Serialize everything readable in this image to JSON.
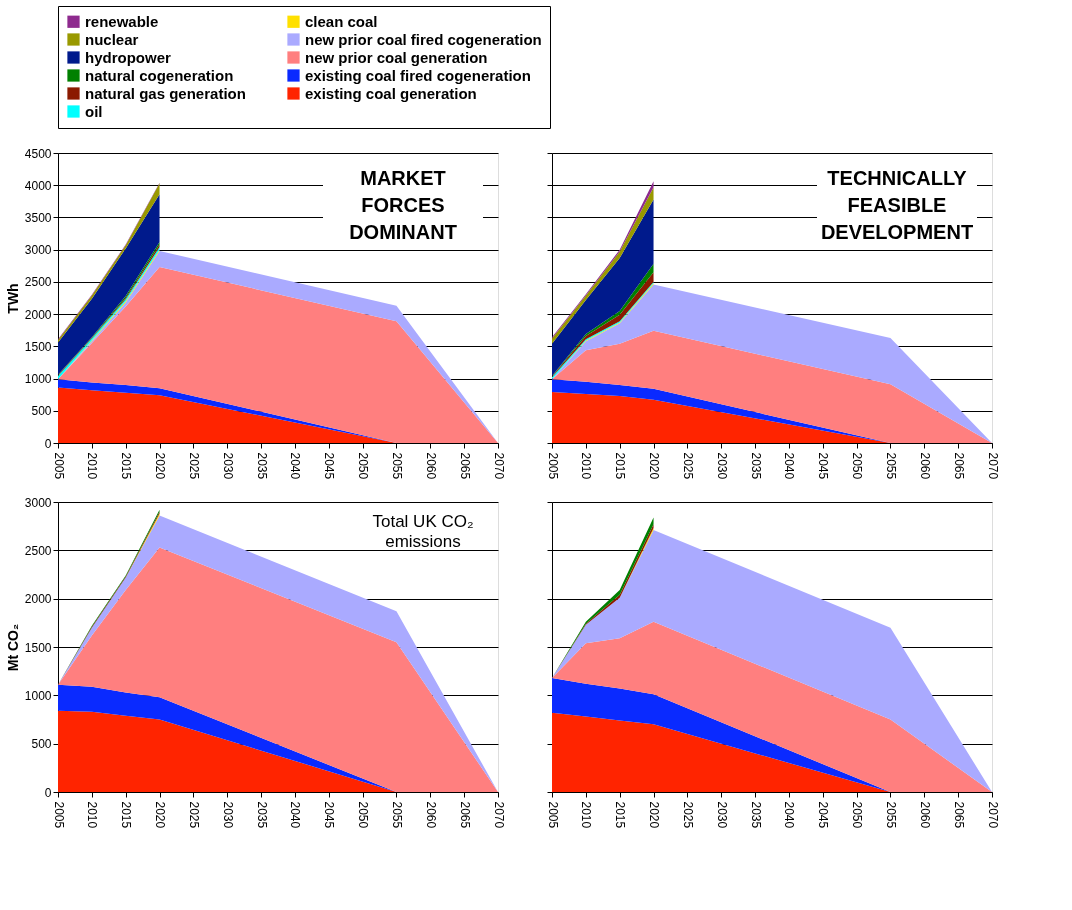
{
  "chart_data": [
    {
      "type": "area",
      "stacked": true,
      "title": "MARKET FORCES DOMINANT",
      "ylabel": "TWh",
      "legend": "top",
      "grid": "y",
      "x": [
        2005,
        2010,
        2015,
        2020,
        2055,
        2070
      ],
      "xlim": [
        2005,
        2070
      ],
      "xticks": [
        2005,
        2010,
        2015,
        2020,
        2025,
        2030,
        2035,
        2040,
        2045,
        2050,
        2055,
        2060,
        2065,
        2070
      ],
      "ylim": [
        0,
        4500
      ],
      "yticks": [
        0,
        500,
        1000,
        1500,
        2000,
        2500,
        3000,
        3500,
        4000,
        4500
      ],
      "series": [
        {
          "name": "existing coal generation",
          "color": "#ff2400",
          "values": [
            860,
            820,
            780,
            740,
            0,
            0
          ]
        },
        {
          "name": "existing coal fired cogeneration",
          "color": "#0a2aff",
          "values": [
            130,
            120,
            120,
            110,
            0,
            0
          ]
        },
        {
          "name": "new prior coal generation",
          "color": "#ff7f7f",
          "values": [
            0,
            610,
            1220,
            1880,
            1890,
            0
          ]
        },
        {
          "name": "new prior coal fired cogeneration",
          "color": "#aaaaff",
          "values": [
            0,
            30,
            60,
            250,
            240,
            0
          ]
        },
        {
          "name": "clean coal",
          "color": "#ffe000",
          "values": [
            0,
            10,
            20,
            20,
            null,
            null
          ]
        },
        {
          "name": "oil",
          "color": "#00ffff",
          "values": [
            50,
            30,
            30,
            40,
            null,
            null
          ]
        },
        {
          "name": "natural gas generation",
          "color": "#8b1a00",
          "values": [
            10,
            10,
            20,
            40,
            null,
            null
          ]
        },
        {
          "name": "natural cogeneration",
          "color": "#008000",
          "values": [
            10,
            10,
            30,
            40,
            null,
            null
          ]
        },
        {
          "name": "hydropower",
          "color": "#001a8c",
          "values": [
            500,
            600,
            740,
            740,
            null,
            null
          ]
        },
        {
          "name": "nuclear",
          "color": "#999900",
          "values": [
            40,
            50,
            50,
            170,
            null,
            null
          ]
        },
        {
          "name": "renewable",
          "color": "#8e2a8e",
          "values": [
            10,
            10,
            10,
            10,
            null,
            null
          ]
        }
      ]
    },
    {
      "type": "area",
      "stacked": true,
      "title": "TECHNICALLY FEASIBLE DEVELOPMENT",
      "tick_labels": "x",
      "grid": "y",
      "x": [
        2005,
        2010,
        2015,
        2020,
        2055,
        2070
      ],
      "xlim": [
        2005,
        2070
      ],
      "xticks": [
        2005,
        2010,
        2015,
        2020,
        2025,
        2030,
        2035,
        2040,
        2045,
        2050,
        2055,
        2060,
        2065,
        2070
      ],
      "ylim": [
        0,
        4500
      ],
      "yticks": [
        0,
        500,
        1000,
        1500,
        2000,
        2500,
        3000,
        3500,
        4000,
        4500
      ],
      "series": [
        {
          "name": "existing coal generation",
          "color": "#ff2400",
          "values": [
            790,
            760,
            730,
            670,
            0,
            0
          ]
        },
        {
          "name": "existing coal fired cogeneration",
          "color": "#0a2aff",
          "values": [
            200,
            190,
            170,
            170,
            0,
            0
          ]
        },
        {
          "name": "new prior coal generation",
          "color": "#ff7f7f",
          "values": [
            0,
            490,
            640,
            900,
            910,
            0
          ]
        },
        {
          "name": "new prior coal fired cogeneration",
          "color": "#aaaaff",
          "values": [
            0,
            140,
            320,
            720,
            720,
            0
          ]
        },
        {
          "name": "clean coal",
          "color": "#ffe000",
          "values": [
            0,
            10,
            10,
            20,
            null,
            null
          ]
        },
        {
          "name": "oil",
          "color": "#00ffff",
          "values": [
            30,
            20,
            20,
            20,
            null,
            null
          ]
        },
        {
          "name": "natural gas generation",
          "color": "#8b1a00",
          "values": [
            10,
            50,
            100,
            150,
            null,
            null
          ]
        },
        {
          "name": "natural cogeneration",
          "color": "#008000",
          "values": [
            10,
            30,
            60,
            130,
            null,
            null
          ]
        },
        {
          "name": "hydropower",
          "color": "#001a8c",
          "values": [
            500,
            530,
            820,
            1000,
            null,
            null
          ]
        },
        {
          "name": "nuclear",
          "color": "#999900",
          "values": [
            80,
            70,
            100,
            190,
            null,
            null
          ]
        },
        {
          "name": "renewable",
          "color": "#8e2a8e",
          "values": [
            20,
            20,
            30,
            90,
            null,
            null
          ]
        }
      ]
    },
    {
      "type": "area",
      "stacked": true,
      "ylabel": "Mt CO₂",
      "grid": "y",
      "annotations": [
        "Total UK CO₂ emissions"
      ],
      "x": [
        2005,
        2010,
        2015,
        2020,
        2055,
        2070
      ],
      "xlim": [
        2005,
        2070
      ],
      "xticks": [
        2005,
        2010,
        2015,
        2020,
        2025,
        2030,
        2035,
        2040,
        2045,
        2050,
        2055,
        2060,
        2065,
        2070
      ],
      "ylim": [
        0,
        3000
      ],
      "yticks": [
        0,
        500,
        1000,
        1500,
        2000,
        2500,
        3000
      ],
      "series": [
        {
          "name": "existing coal generation",
          "color": "#ff2400",
          "values": [
            840,
            830,
            790,
            750,
            0,
            0
          ]
        },
        {
          "name": "existing coal fired cogeneration",
          "color": "#0a2aff",
          "values": [
            270,
            260,
            240,
            230,
            0,
            0
          ]
        },
        {
          "name": "new prior coal generation",
          "color": "#ff7f7f",
          "values": [
            0,
            530,
            1060,
            1550,
            1550,
            0
          ]
        },
        {
          "name": "new prior coal fired cogeneration",
          "color": "#aaaaff",
          "values": [
            0,
            80,
            130,
            330,
            320,
            0
          ]
        },
        {
          "name": "clean coal",
          "color": "#ffe000",
          "values": [
            0,
            0,
            0,
            20,
            null,
            null
          ]
        },
        {
          "name": "natural gas generation",
          "color": "#8b1a00",
          "values": [
            0,
            10,
            10,
            20,
            null,
            null
          ]
        },
        {
          "name": "natural cogeneration",
          "color": "#008000",
          "values": [
            0,
            10,
            10,
            20,
            null,
            null
          ]
        }
      ]
    },
    {
      "type": "area",
      "stacked": true,
      "tick_labels": "x",
      "grid": "y",
      "x": [
        2005,
        2010,
        2015,
        2020,
        2055,
        2070
      ],
      "xlim": [
        2005,
        2070
      ],
      "xticks": [
        2005,
        2010,
        2015,
        2020,
        2025,
        2030,
        2035,
        2040,
        2045,
        2050,
        2055,
        2060,
        2065,
        2070
      ],
      "ylim": [
        0,
        3000
      ],
      "yticks": [
        0,
        500,
        1000,
        1500,
        2000,
        2500,
        3000
      ],
      "series": [
        {
          "name": "existing coal generation",
          "color": "#ff2400",
          "values": [
            820,
            780,
            740,
            700,
            0,
            0
          ]
        },
        {
          "name": "existing coal fired cogeneration",
          "color": "#0a2aff",
          "values": [
            360,
            340,
            330,
            310,
            0,
            0
          ]
        },
        {
          "name": "new prior coal generation",
          "color": "#ff7f7f",
          "values": [
            0,
            420,
            520,
            750,
            750,
            0
          ]
        },
        {
          "name": "new prior coal fired cogeneration",
          "color": "#aaaaff",
          "values": [
            0,
            190,
            420,
            950,
            950,
            0
          ]
        },
        {
          "name": "clean coal",
          "color": "#ffe000",
          "values": [
            0,
            0,
            0,
            20,
            null,
            null
          ]
        },
        {
          "name": "natural gas generation",
          "color": "#8b1a00",
          "values": [
            0,
            10,
            30,
            40,
            null,
            null
          ]
        },
        {
          "name": "natural cogeneration",
          "color": "#008000",
          "values": [
            0,
            20,
            50,
            70,
            null,
            null
          ]
        }
      ]
    }
  ]
}
